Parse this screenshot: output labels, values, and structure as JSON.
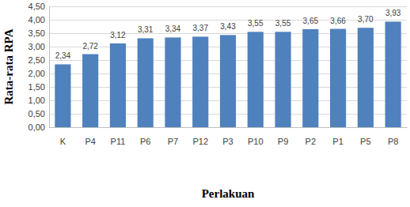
{
  "chart_data": {
    "type": "bar",
    "x_label": "Perlakuan",
    "y_label": "Rata-rata RPA",
    "categories": [
      "K",
      "P4",
      "P11",
      "P6",
      "P7",
      "P12",
      "P3",
      "P10",
      "P9",
      "P2",
      "P1",
      "P5",
      "P8"
    ],
    "values": [
      2.34,
      2.72,
      3.12,
      3.31,
      3.34,
      3.37,
      3.43,
      3.55,
      3.55,
      3.65,
      3.66,
      3.7,
      3.93
    ],
    "value_labels": [
      "2,34",
      "2,72",
      "3,12",
      "3,31",
      "3,34",
      "3,37",
      "3,43",
      "3,55",
      "3,55",
      "3,65",
      "3,66",
      "3,70",
      "3,93"
    ],
    "color": "#4f81bd",
    "ylim": [
      0,
      4.5
    ],
    "yticks": [
      {
        "value": 0,
        "label": "0,00"
      },
      {
        "value": 0.5,
        "label": "0,50"
      },
      {
        "value": 1,
        "label": "1,00"
      },
      {
        "value": 1.5,
        "label": "1,50"
      },
      {
        "value": 2,
        "label": "2,00"
      },
      {
        "value": 2.5,
        "label": "2,50"
      },
      {
        "value": 3,
        "label": "3,00"
      },
      {
        "value": 3.5,
        "label": "3,50"
      },
      {
        "value": 4,
        "label": "4,00"
      },
      {
        "value": 4.5,
        "label": "4,50"
      }
    ],
    "grid": true,
    "data_labels": true
  }
}
